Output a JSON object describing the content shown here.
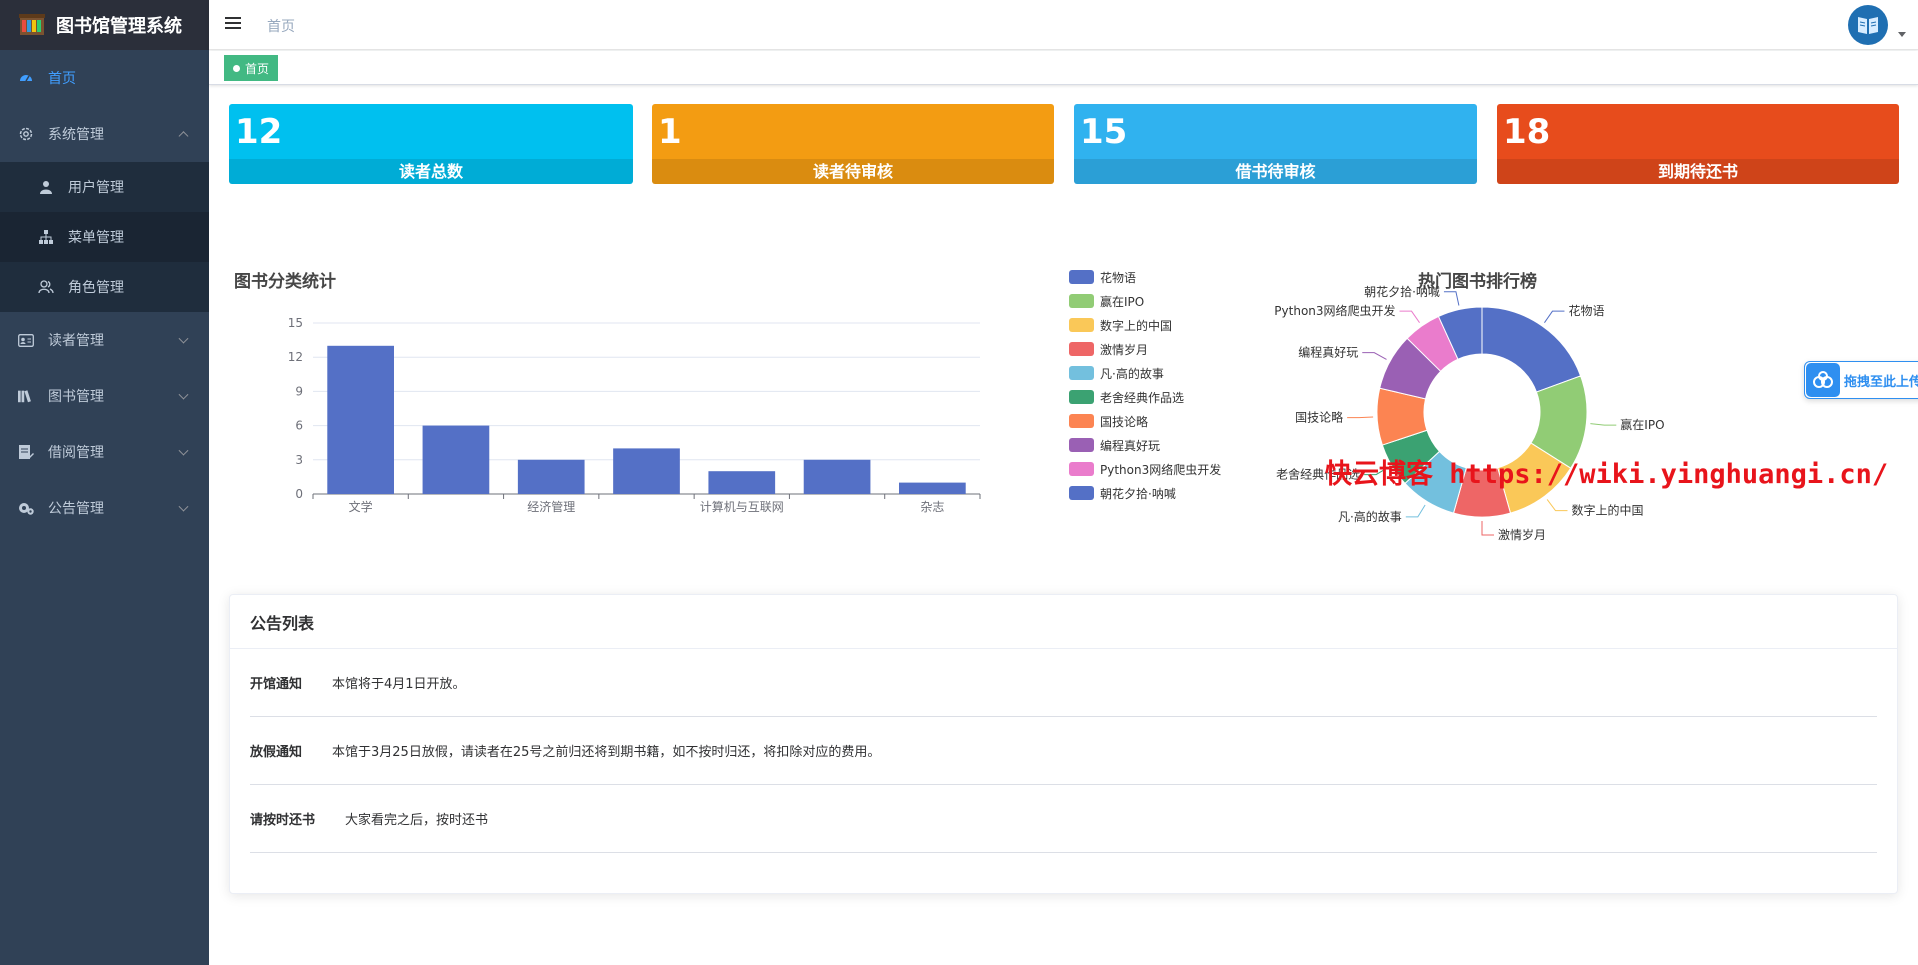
{
  "app": {
    "title": "图书馆管理系统"
  },
  "sidebar": {
    "items": [
      {
        "label": "首页"
      },
      {
        "label": "系统管理",
        "children": [
          {
            "label": "用户管理"
          },
          {
            "label": "菜单管理"
          },
          {
            "label": "角色管理"
          }
        ]
      },
      {
        "label": "读者管理"
      },
      {
        "label": "图书管理"
      },
      {
        "label": "借阅管理"
      },
      {
        "label": "公告管理"
      }
    ]
  },
  "header": {
    "breadcrumb": "首页",
    "tag": "首页"
  },
  "stats": [
    {
      "value": "12",
      "label": "读者总数",
      "color": "#00c0ef"
    },
    {
      "value": "1",
      "label": "读者待审核",
      "color": "#f39c12"
    },
    {
      "value": "15",
      "label": "借书待审核",
      "color": "#30b2ef"
    },
    {
      "value": "18",
      "label": "到期待还书",
      "color": "#e74c1c"
    }
  ],
  "chart_data": [
    {
      "type": "bar",
      "title": "图书分类统计",
      "categories": [
        "文学",
        "",
        "经济管理",
        "",
        "计算机与互联网",
        "",
        "杂志"
      ],
      "values": [
        13,
        6,
        3,
        4,
        2,
        3,
        1
      ],
      "ylim": [
        0,
        15
      ],
      "yticks": [
        0,
        3,
        6,
        9,
        12,
        15
      ],
      "color": "#5470c6",
      "grid": true
    },
    {
      "type": "pie",
      "title": "热门图书排行榜",
      "legend_position": "left",
      "slices": [
        {
          "name": "花物语",
          "value": 20,
          "color": "#5470c6"
        },
        {
          "name": "赢在IPO",
          "value": 15,
          "color": "#91cc75"
        },
        {
          "name": "数字上的中国",
          "value": 12,
          "color": "#fac858"
        },
        {
          "name": "激情岁月",
          "value": 9,
          "color": "#ee6666"
        },
        {
          "name": "凡·高的故事",
          "value": 9,
          "color": "#73c0de"
        },
        {
          "name": "老舍经典作品选",
          "value": 7,
          "color": "#3ba272"
        },
        {
          "name": "国技论略",
          "value": 9,
          "color": "#fc8452"
        },
        {
          "name": "编程真好玩",
          "value": 9,
          "color": "#9a60b4"
        },
        {
          "name": "Python3网络爬虫开发",
          "value": 6,
          "color": "#ea7ccc"
        },
        {
          "name": "朝花夕拾·呐喊",
          "value": 7,
          "color": "#5470c6"
        }
      ]
    }
  ],
  "notice": {
    "title": "公告列表",
    "rows": [
      {
        "title": "开馆通知",
        "content": "本馆将于4月1日开放。"
      },
      {
        "title": "放假通知",
        "content": "本馆于3月25日放假，请读者在25号之前归还将到期书籍，如不按时归还，将扣除对应的费用。"
      },
      {
        "title": "请按时还书",
        "content": "大家看完之后，按时还书"
      }
    ]
  },
  "float_widget": {
    "label": "拖拽至此上传"
  },
  "watermark": "快云博客 https://wiki.yinghuangi.cn/"
}
